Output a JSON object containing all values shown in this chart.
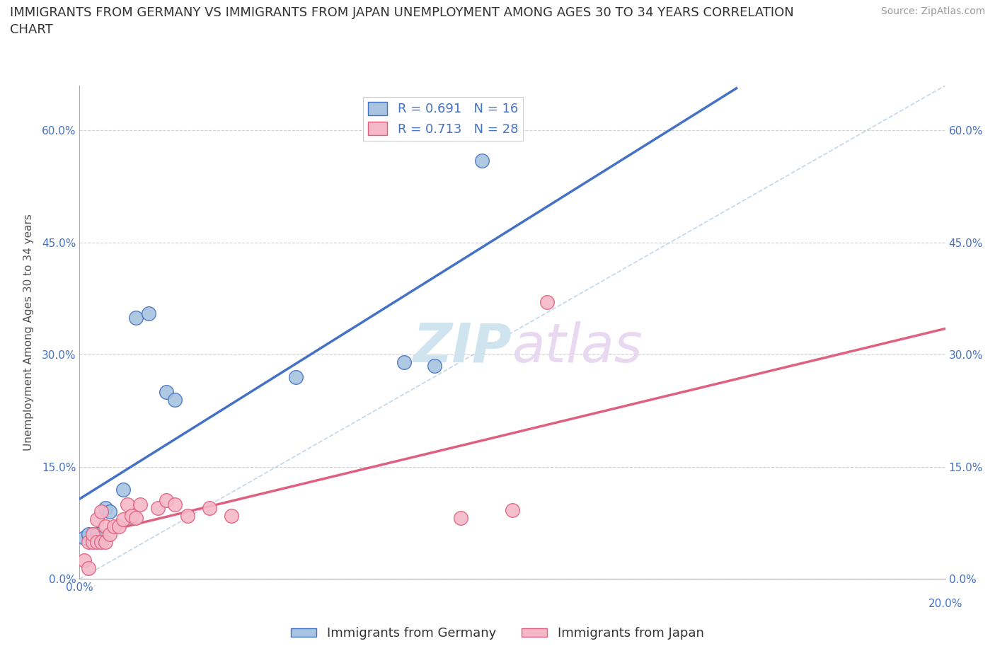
{
  "title": "IMMIGRANTS FROM GERMANY VS IMMIGRANTS FROM JAPAN UNEMPLOYMENT AMONG AGES 30 TO 34 YEARS CORRELATION\nCHART",
  "source_text": "Source: ZipAtlas.com",
  "ylabel": "Unemployment Among Ages 30 to 34 years",
  "xlabel_germany": "Immigrants from Germany",
  "xlabel_japan": "Immigrants from Japan",
  "germany_R": 0.691,
  "germany_N": 16,
  "japan_R": 0.713,
  "japan_N": 28,
  "germany_color": "#a8c4e0",
  "germany_line_color": "#4472c4",
  "japan_color": "#f4b8c8",
  "japan_line_color": "#e06080",
  "diagonal_color": "#b0c8e0",
  "watermark_color": "#d0e4f0",
  "tick_label_color": "#4472c4",
  "ylabel_color": "#555555",
  "x_min": 0.0,
  "x_max": 0.2,
  "y_min": 0.0,
  "y_max": 0.66,
  "x_ticks": [
    0.0,
    0.04,
    0.08,
    0.12,
    0.16,
    0.2
  ],
  "x_tick_labels_left": [
    "0.0%",
    "",
    "",
    "",
    "",
    ""
  ],
  "x_tick_labels_right": [
    "20.0%"
  ],
  "y_ticks": [
    0.0,
    0.15,
    0.3,
    0.45,
    0.6
  ],
  "y_tick_labels": [
    "0.0%",
    "15.0%",
    "30.0%",
    "45.0%",
    "60.0%"
  ],
  "germany_x": [
    0.001,
    0.002,
    0.003,
    0.004,
    0.005,
    0.006,
    0.007,
    0.01,
    0.013,
    0.016,
    0.02,
    0.022,
    0.05,
    0.075,
    0.082,
    0.093
  ],
  "germany_y": [
    0.055,
    0.06,
    0.06,
    0.06,
    0.055,
    0.095,
    0.09,
    0.12,
    0.35,
    0.355,
    0.25,
    0.24,
    0.27,
    0.29,
    0.285,
    0.56
  ],
  "japan_x": [
    0.001,
    0.002,
    0.002,
    0.003,
    0.003,
    0.004,
    0.004,
    0.005,
    0.005,
    0.006,
    0.006,
    0.007,
    0.008,
    0.009,
    0.01,
    0.011,
    0.012,
    0.013,
    0.014,
    0.018,
    0.02,
    0.022,
    0.025,
    0.03,
    0.035,
    0.088,
    0.1,
    0.108
  ],
  "japan_y": [
    0.025,
    0.015,
    0.05,
    0.05,
    0.06,
    0.05,
    0.08,
    0.05,
    0.09,
    0.05,
    0.07,
    0.06,
    0.07,
    0.07,
    0.08,
    0.1,
    0.085,
    0.082,
    0.1,
    0.095,
    0.105,
    0.1,
    0.085,
    0.095,
    0.085,
    0.082,
    0.092,
    0.37
  ],
  "title_fontsize": 13,
  "source_fontsize": 10,
  "tick_fontsize": 11,
  "legend_fontsize": 13,
  "ylabel_fontsize": 11,
  "watermark_fontsize": 55
}
